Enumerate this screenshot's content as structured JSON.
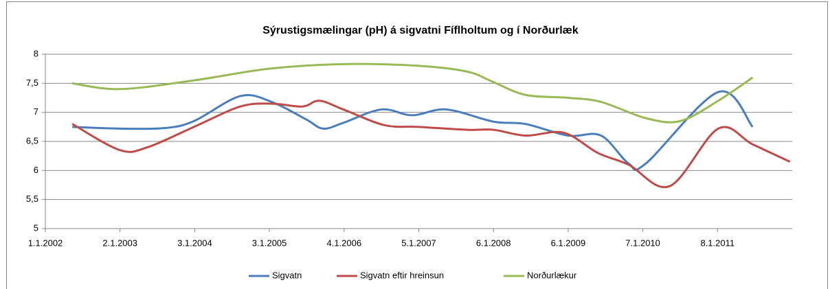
{
  "chart_data": {
    "type": "line",
    "title": "Sýrustigsmælingar (pH) á sigvatni Fíflholtum og í Norðurlæk",
    "xlim": [
      2002,
      2012
    ],
    "xticks": [
      {
        "value": 2002,
        "label": "1.1.2002"
      },
      {
        "value": 2003,
        "label": "2.1.2003"
      },
      {
        "value": 2004,
        "label": "3.1.2004"
      },
      {
        "value": 2005,
        "label": "3.1.2005"
      },
      {
        "value": 2006,
        "label": "4.1.2006"
      },
      {
        "value": 2007,
        "label": "5.1.2007"
      },
      {
        "value": 2008,
        "label": "6.1.2008"
      },
      {
        "value": 2009,
        "label": "6.1.2009"
      },
      {
        "value": 2010,
        "label": "7.1.2010"
      },
      {
        "value": 2011,
        "label": "8.1.2011"
      }
    ],
    "ylim": [
      5,
      8
    ],
    "yticks": [
      5,
      {
        "value": 5.5,
        "label": "5,5"
      },
      6,
      {
        "value": 6.5,
        "label": "6,5"
      },
      7,
      {
        "value": 7.5,
        "label": "7,5"
      },
      8
    ],
    "grid": true,
    "legend": "bottom",
    "series": [
      {
        "name": "Sigvatn",
        "color": "#4a7ebb",
        "x": [
          2002.36,
          2003.0,
          2003.6,
          2003.99,
          2004.61,
          2005.03,
          2005.49,
          2005.72,
          2005.99,
          2006.5,
          2006.91,
          2007.37,
          2008.0,
          2008.43,
          2009.0,
          2009.44,
          2009.81,
          2010.04,
          2011.01,
          2011.47
        ],
        "values": [
          6.75,
          6.72,
          6.73,
          6.85,
          7.28,
          7.18,
          6.88,
          6.72,
          6.82,
          7.05,
          6.95,
          7.05,
          6.84,
          6.8,
          6.6,
          6.6,
          6.12,
          6.12,
          7.35,
          6.75
        ]
      },
      {
        "name": "Sigvatn eftir hreinsun",
        "color": "#be4b48",
        "x": [
          2002.36,
          2003.0,
          2003.37,
          2003.99,
          2004.61,
          2005.03,
          2005.44,
          2005.67,
          2005.99,
          2006.54,
          2007.0,
          2007.65,
          2008.0,
          2008.43,
          2008.94,
          2009.4,
          2009.81,
          2010.36,
          2011.01,
          2011.47,
          2011.97
        ],
        "values": [
          6.8,
          6.35,
          6.4,
          6.75,
          7.1,
          7.15,
          7.1,
          7.2,
          7.05,
          6.78,
          6.75,
          6.7,
          6.7,
          6.6,
          6.65,
          6.3,
          6.1,
          5.73,
          6.72,
          6.45,
          6.15
        ]
      },
      {
        "name": "Norðurlækur",
        "color": "#98b954",
        "x": [
          2002.36,
          2003.0,
          2003.99,
          2004.99,
          2005.99,
          2007.0,
          2007.65,
          2008.0,
          2008.43,
          2009.0,
          2009.44,
          2010.04,
          2010.5,
          2011.01,
          2011.47
        ],
        "values": [
          7.5,
          7.4,
          7.55,
          7.75,
          7.83,
          7.8,
          7.7,
          7.52,
          7.3,
          7.25,
          7.18,
          6.9,
          6.85,
          7.2,
          7.6
        ]
      }
    ]
  }
}
